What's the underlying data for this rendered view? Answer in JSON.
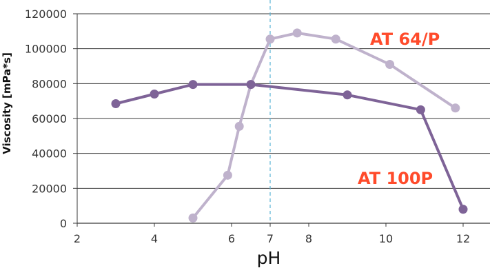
{
  "chart_data": {
    "type": "line",
    "title": "",
    "xlabel": "pH",
    "ylabel": "Viscosity [mPa*s]",
    "xlim": [
      2,
      13
    ],
    "ylim": [
      0,
      120000
    ],
    "x_ticks": [
      2,
      4,
      6,
      7,
      8,
      10,
      12
    ],
    "y_ticks": [
      0,
      20000,
      40000,
      60000,
      80000,
      100000,
      120000
    ],
    "grid": "horizontal",
    "reference_line": {
      "x": 7,
      "style": "dashed",
      "color": "#5bb3d6"
    },
    "series": [
      {
        "name": "AT 64/P",
        "color": "#bfb2cc",
        "label_color": "#ff4b2b",
        "points": [
          [
            5.0,
            3000
          ],
          [
            5.9,
            27500
          ],
          [
            6.2,
            55500
          ],
          [
            6.5,
            79500
          ],
          [
            7.0,
            105500
          ],
          [
            7.7,
            109000
          ],
          [
            8.7,
            105500
          ],
          [
            10.1,
            91000
          ],
          [
            11.8,
            66000
          ]
        ]
      },
      {
        "name": "AT 100P",
        "color": "#7e6397",
        "label_color": "#ff4b2b",
        "points": [
          [
            3.0,
            68500
          ],
          [
            4.0,
            74000
          ],
          [
            5.0,
            79500
          ],
          [
            6.5,
            79500
          ],
          [
            9.0,
            73500
          ],
          [
            10.9,
            65000
          ],
          [
            12.0,
            8000
          ]
        ]
      }
    ]
  }
}
